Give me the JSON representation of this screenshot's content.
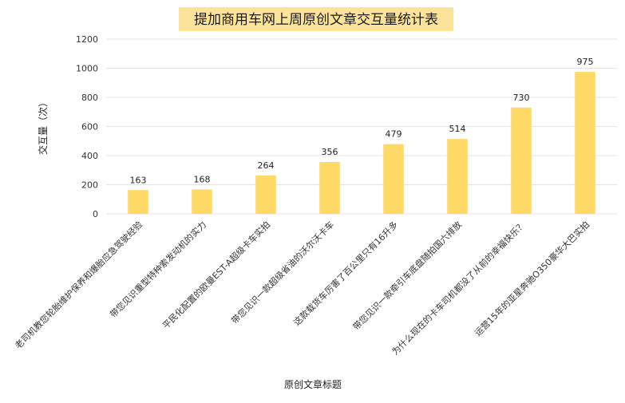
{
  "chart_data": {
    "type": "bar",
    "title": "提加商用车网上周原创文章交互量统计表",
    "xlabel": "原创文章标题",
    "ylabel": "交互量（次）",
    "ylim": [
      0,
      1200
    ],
    "yticks": [
      0,
      200,
      400,
      600,
      800,
      1000,
      1200
    ],
    "grid": true,
    "bar_color": "#ffd966",
    "title_bg_color": "#fbe39a",
    "categories": [
      "老司机教您轮胎维护保养和爆胎应急驾驶经验",
      "带您见识重型特种索发动机的实力",
      "平民化配置的欧曼EST-A超级卡车实拍",
      "带您见识一款超级省油的沃尔沃卡车",
      "这款载货车厉害了百公里只有16升多",
      "带您见识一款牵引车底盘随拍国六排放",
      "为什么现在的卡车司机都没了从前的幸福快乐？",
      "运营15年的亚星奔驰O350豪华大巴实拍"
    ],
    "values": [
      163,
      168,
      264,
      356,
      479,
      514,
      730,
      975
    ]
  }
}
